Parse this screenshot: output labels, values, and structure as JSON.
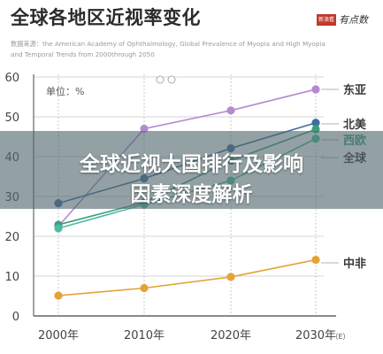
{
  "header": {
    "title": "全球各地区近视率变化",
    "source": "数据来源：the American Academy of Ophthalmology, Global Prevalence of Myopia and High Myopia and Temporal Trends from 2000through 2050",
    "brand_box": "新浪看点",
    "brand_text": "有点数"
  },
  "banner": {
    "line1": "全球近视大国排行及影响",
    "line2": "因素深度解析"
  },
  "chart_data": {
    "type": "line",
    "categories": [
      "2000年",
      "2010年",
      "2020年",
      "2030年"
    ],
    "category_note": "（E）",
    "unit_label": "单位：%",
    "ylim": [
      0,
      60
    ],
    "yticks": [
      0,
      10,
      20,
      30,
      40,
      50,
      60
    ],
    "grid": true,
    "series": [
      {
        "name": "东亚",
        "color": "#b58ad0",
        "values": [
          22.5,
          47,
          51.6,
          56.9
        ]
      },
      {
        "name": "北美",
        "color": "#3d6f9e",
        "values": [
          28.3,
          34.5,
          42.1,
          48.5
        ]
      },
      {
        "name": "西欧",
        "color": "#3e9c7a",
        "values": [
          22.9,
          28.5,
          39.0,
          46.9
        ]
      },
      {
        "name": "全球",
        "color": "#4cbba4",
        "values": [
          22.0,
          28.0,
          34.0,
          44.5
        ]
      },
      {
        "name": "中非",
        "color": "#e4a336",
        "values": [
          5.1,
          7.0,
          9.8,
          14.1
        ]
      }
    ],
    "series_label_colors": {
      "东亚": "#3a3a3a",
      "北美": "#3a3a3a",
      "西欧": "#3e9c7a",
      "全球": "#3a3a3a",
      "中非": "#3a3a3a"
    },
    "axis_color": "#444444",
    "grid_color": "#d6d6d6"
  }
}
